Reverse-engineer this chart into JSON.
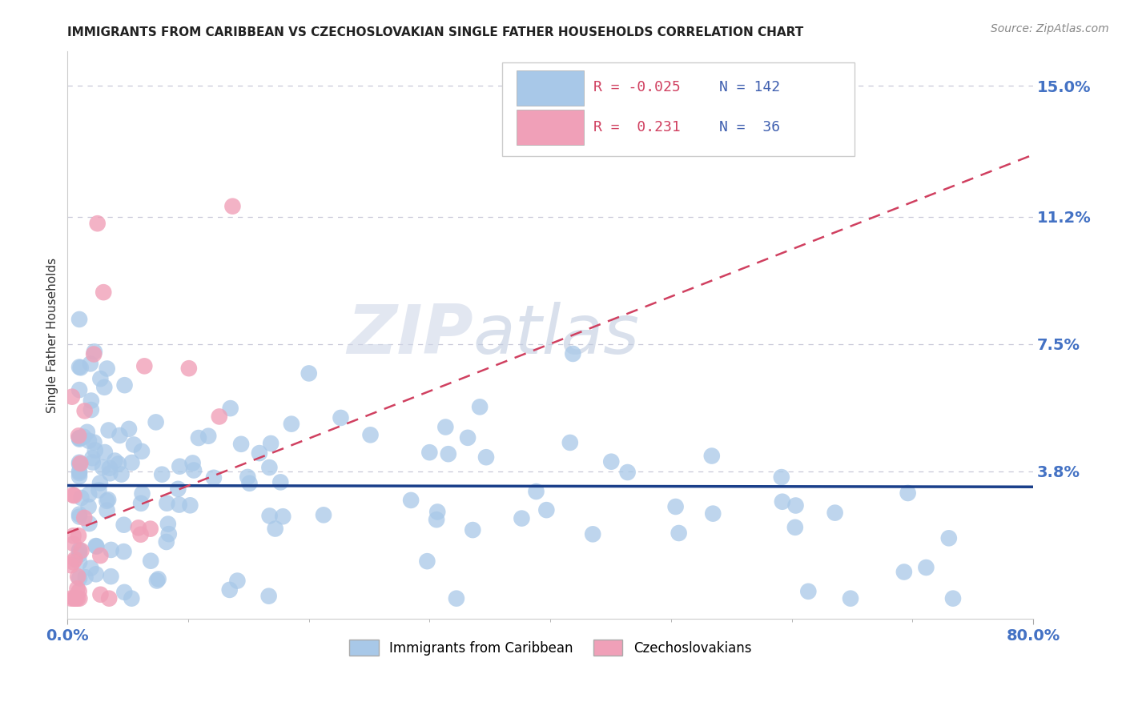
{
  "title": "IMMIGRANTS FROM CARIBBEAN VS CZECHOSLOVAKIAN SINGLE FATHER HOUSEHOLDS CORRELATION CHART",
  "source_text": "Source: ZipAtlas.com",
  "ylabel": "Single Father Households",
  "xlabel": "",
  "xlim": [
    0.0,
    0.8
  ],
  "ylim": [
    -0.005,
    0.16
  ],
  "yticks": [
    0.038,
    0.075,
    0.112,
    0.15
  ],
  "ytick_labels": [
    "3.8%",
    "7.5%",
    "11.2%",
    "15.0%"
  ],
  "xticks": [
    0.0,
    0.8
  ],
  "xtick_labels": [
    "0.0%",
    "80.0%"
  ],
  "color_blue": "#a8c8e8",
  "color_pink": "#f0a0b8",
  "line_blue": "#1a3f8a",
  "line_pink": "#d04060",
  "watermark_zip": "ZIP",
  "watermark_atlas": "atlas",
  "title_color": "#222222",
  "axis_label_color": "#4472c4",
  "grid_color": "#c8c8d8",
  "legend_text_color": "#4060b0",
  "legend_r_color": "#d04060",
  "blue_r": -0.025,
  "blue_n": 142,
  "pink_r": 0.231,
  "pink_n": 36,
  "blue_line_y_start": 0.032,
  "blue_line_y_end": 0.03,
  "pink_line_x_start": 0.0,
  "pink_line_x_end": 0.8,
  "pink_line_y_start": 0.02,
  "pink_line_y_end": 0.13
}
